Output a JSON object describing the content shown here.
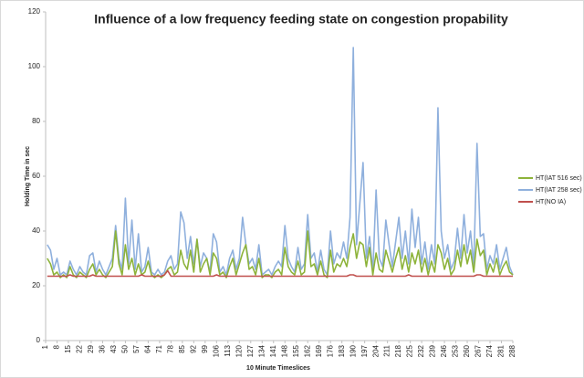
{
  "chart_data": {
    "type": "line",
    "title": "Influence of a low frequency feeding state on congestion propability",
    "x_label": "10 Minute Timeslices",
    "y_label": "Holding Time in sec",
    "legend": "right",
    "grid": false,
    "xlim": [
      1,
      288
    ],
    "xticks": [
      1,
      8,
      15,
      22,
      29,
      36,
      43,
      50,
      57,
      64,
      71,
      78,
      85,
      92,
      99,
      106,
      113,
      120,
      127,
      134,
      141,
      148,
      155,
      162,
      169,
      176,
      183,
      190,
      197,
      204,
      211,
      218,
      225,
      232,
      239,
      246,
      253,
      260,
      267,
      274,
      281,
      288
    ],
    "ylim": [
      0,
      120
    ],
    "yticks": [
      0,
      20,
      40,
      60,
      80,
      100,
      120
    ],
    "x": [
      2,
      4,
      6,
      8,
      10,
      12,
      14,
      16,
      18,
      20,
      22,
      24,
      26,
      28,
      30,
      32,
      34,
      36,
      38,
      40,
      42,
      44,
      46,
      48,
      50,
      52,
      54,
      56,
      58,
      60,
      62,
      64,
      66,
      68,
      70,
      72,
      74,
      76,
      78,
      80,
      82,
      84,
      86,
      88,
      90,
      92,
      94,
      96,
      98,
      100,
      102,
      104,
      106,
      108,
      110,
      112,
      114,
      116,
      118,
      120,
      122,
      124,
      126,
      128,
      130,
      132,
      134,
      136,
      138,
      140,
      142,
      144,
      146,
      148,
      150,
      152,
      154,
      156,
      158,
      160,
      162,
      164,
      166,
      168,
      170,
      172,
      174,
      176,
      178,
      180,
      182,
      184,
      186,
      188,
      190,
      192,
      194,
      196,
      198,
      200,
      202,
      204,
      206,
      208,
      210,
      212,
      214,
      216,
      218,
      220,
      222,
      224,
      226,
      228,
      230,
      232,
      234,
      236,
      238,
      240,
      242,
      244,
      246,
      248,
      250,
      252,
      254,
      256,
      258,
      260,
      262,
      264,
      266,
      268,
      270,
      272,
      274,
      276,
      278,
      280,
      282,
      284,
      286,
      288
    ],
    "series": [
      {
        "name": "HT(IAT 516 sec)",
        "color": "#8db33a",
        "values": [
          30,
          28,
          24,
          25,
          23,
          24,
          23,
          27,
          24,
          23,
          25,
          24,
          23,
          26,
          28,
          24,
          26,
          24,
          23,
          25,
          27,
          40,
          28,
          24,
          35,
          26,
          30,
          24,
          28,
          24,
          25,
          29,
          24,
          23,
          24,
          23,
          24,
          26,
          27,
          24,
          25,
          33,
          28,
          26,
          33,
          25,
          37,
          25,
          28,
          30,
          24,
          32,
          30,
          24,
          25,
          23,
          27,
          30,
          24,
          28,
          32,
          35,
          26,
          27,
          24,
          30,
          23,
          24,
          24,
          23,
          25,
          26,
          24,
          34,
          27,
          25,
          24,
          29,
          24,
          25,
          40,
          27,
          28,
          24,
          29,
          24,
          23,
          33,
          25,
          28,
          27,
          30,
          27,
          34,
          39,
          30,
          36,
          35,
          27,
          34,
          24,
          32,
          26,
          25,
          33,
          29,
          25,
          30,
          34,
          26,
          31,
          25,
          32,
          28,
          33,
          25,
          30,
          24,
          29,
          25,
          35,
          32,
          26,
          30,
          24,
          26,
          33,
          27,
          35,
          28,
          33,
          25,
          37,
          31,
          33,
          24,
          28,
          25,
          30,
          24,
          27,
          29,
          25,
          24
        ]
      },
      {
        "name": "HT(IAT 258 sec)",
        "color": "#8fb0dd",
        "values": [
          35,
          33,
          26,
          30,
          24,
          25,
          24,
          29,
          26,
          24,
          27,
          25,
          24,
          31,
          32,
          25,
          29,
          26,
          24,
          27,
          30,
          42,
          30,
          26,
          52,
          28,
          44,
          26,
          39,
          25,
          27,
          34,
          25,
          24,
          26,
          24,
          25,
          29,
          31,
          26,
          28,
          47,
          43,
          30,
          38,
          28,
          37,
          27,
          32,
          30,
          25,
          39,
          36,
          25,
          27,
          24,
          30,
          33,
          26,
          30,
          45,
          35,
          28,
          30,
          26,
          35,
          24,
          25,
          26,
          24,
          27,
          29,
          27,
          42,
          30,
          27,
          25,
          34,
          26,
          28,
          46,
          30,
          32,
          25,
          33,
          26,
          24,
          40,
          28,
          32,
          30,
          36,
          30,
          45,
          107,
          35,
          50,
          65,
          30,
          38,
          25,
          55,
          30,
          27,
          44,
          35,
          27,
          36,
          45,
          30,
          40,
          28,
          48,
          34,
          45,
          28,
          36,
          26,
          35,
          28,
          85,
          40,
          30,
          35,
          26,
          29,
          41,
          30,
          46,
          32,
          40,
          27,
          72,
          38,
          39,
          26,
          31,
          28,
          35,
          26,
          30,
          34,
          27,
          24
        ]
      },
      {
        "name": "HT(NO IA)",
        "color": "#c0504d",
        "values": [
          23.5,
          23.5,
          23.5,
          23.5,
          23.5,
          23.5,
          23.5,
          24,
          23.5,
          23.5,
          23.5,
          23.5,
          23.5,
          23.5,
          24,
          23.5,
          23.5,
          23.5,
          23.5,
          23.5,
          23.5,
          23.5,
          23.5,
          23.5,
          23.5,
          23.5,
          23.5,
          23.5,
          23.5,
          24,
          23.5,
          23.5,
          23.5,
          23.5,
          23.5,
          23.5,
          24,
          25.5,
          23.5,
          23.5,
          23.5,
          23.5,
          23.5,
          23.5,
          23.5,
          23.5,
          23.5,
          23.5,
          23.5,
          23.5,
          23.5,
          23.5,
          24,
          23.5,
          23.5,
          23.5,
          23.5,
          23.5,
          23.5,
          23.5,
          23.5,
          23.5,
          23.5,
          23.5,
          23.5,
          23.5,
          23.5,
          23.5,
          23.5,
          23.5,
          23.5,
          23.5,
          23.5,
          23.5,
          23.5,
          23.5,
          23.5,
          23.5,
          23.5,
          23.5,
          23.5,
          23.5,
          23.5,
          23.5,
          23.5,
          23.5,
          23.5,
          23.5,
          23.5,
          23.5,
          23.5,
          23.5,
          23.5,
          24,
          24,
          23.5,
          23.5,
          23.5,
          23.5,
          23.5,
          23.5,
          23.5,
          23.5,
          23.5,
          23.5,
          23.5,
          23.5,
          23.5,
          23.5,
          23.5,
          23.5,
          24,
          23.5,
          23.5,
          23.5,
          23.5,
          23.5,
          23.5,
          23.5,
          23.5,
          23.5,
          23.5,
          23.5,
          23.5,
          23.5,
          23.5,
          23.5,
          23.5,
          23.5,
          23.5,
          23.5,
          23.5,
          24,
          24,
          23.5,
          23.5,
          23.5,
          23.5,
          23.5,
          23.5,
          23.5,
          23.5,
          23.5,
          23.5
        ]
      }
    ]
  }
}
